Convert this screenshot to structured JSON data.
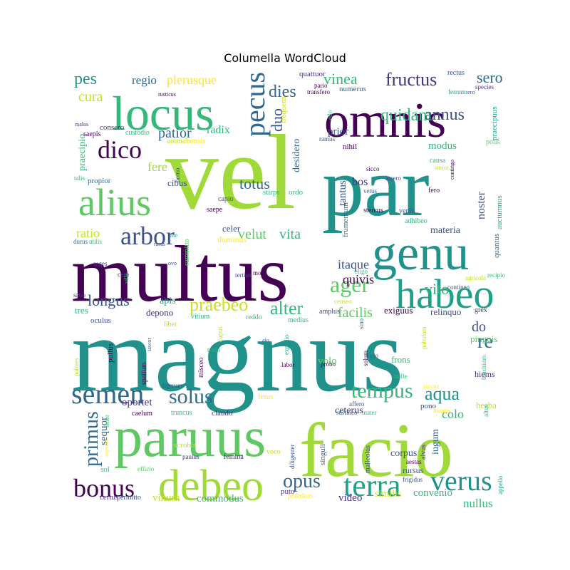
{
  "title": "Columella WordCloud",
  "colors": {
    "dark_purple": "#440154",
    "purple": "#46337e",
    "indigo": "#365c8d",
    "blue": "#277f8e",
    "teal": "#1fa187",
    "green": "#4ac16d",
    "lime": "#a0da39",
    "yellow": "#fde725"
  },
  "words": [
    {
      "text": "magnus",
      "color": "#21918c"
    },
    {
      "text": "vel",
      "color": "#a0da39"
    },
    {
      "text": "par",
      "color": "#21918c"
    },
    {
      "text": "multus",
      "color": "#440154"
    },
    {
      "text": "facio",
      "color": "#a0da39"
    },
    {
      "text": "paruus",
      "color": "#5ec962"
    },
    {
      "text": "omnis",
      "color": "#440154"
    },
    {
      "text": "locus",
      "color": "#35b779"
    },
    {
      "text": "genu",
      "color": "#21918c"
    },
    {
      "text": "debeo",
      "color": "#a0da39"
    },
    {
      "text": "habeo",
      "color": "#1fa187"
    },
    {
      "text": "alius",
      "color": "#5ec962"
    },
    {
      "text": "semen",
      "color": "#31688e"
    },
    {
      "text": "terra",
      "color": "#1fa187"
    },
    {
      "text": "verus",
      "color": "#21918c"
    },
    {
      "text": "dico",
      "color": "#440154"
    },
    {
      "text": "pecus",
      "color": "#31688e"
    },
    {
      "text": "arbor",
      "color": "#3b528b"
    },
    {
      "text": "bonus",
      "color": "#440154"
    },
    {
      "text": "fructus",
      "color": "#46327e"
    },
    {
      "text": "solus",
      "color": "#31688e"
    },
    {
      "text": "ager",
      "color": "#5ec962"
    },
    {
      "text": "tempus",
      "color": "#35b779"
    },
    {
      "text": "aqua",
      "color": "#21918c"
    },
    {
      "text": "primus",
      "color": "#31688e"
    },
    {
      "text": "opus",
      "color": "#31688e"
    },
    {
      "text": "alter",
      "color": "#35b779"
    },
    {
      "text": "praebeo",
      "color": "#c8e020"
    },
    {
      "text": "pes",
      "color": "#21918c"
    },
    {
      "text": "dies",
      "color": "#31688e"
    },
    {
      "text": "quidam",
      "color": "#35b779"
    },
    {
      "text": "annus",
      "color": "#3b528b"
    },
    {
      "text": "re",
      "color": "#31688e"
    },
    {
      "text": "do",
      "color": "#3b528b"
    },
    {
      "text": "longus",
      "color": "#3b528b"
    },
    {
      "text": "vinea",
      "color": "#35b779"
    },
    {
      "text": "sero",
      "color": "#31688e"
    },
    {
      "text": "duo",
      "color": "#3b528b"
    },
    {
      "text": "totus",
      "color": "#31688e"
    },
    {
      "text": "cura",
      "color": "#c8e020"
    },
    {
      "text": "patior",
      "color": "#31688e"
    },
    {
      "text": "velut",
      "color": "#5ec962"
    },
    {
      "text": "vita",
      "color": "#35b779"
    },
    {
      "text": "vito",
      "color": "#35b779"
    },
    {
      "text": "ratio",
      "color": "#c8e020"
    },
    {
      "text": "fere",
      "color": "#a0da39"
    },
    {
      "text": "itaque",
      "color": "#3b528b"
    },
    {
      "text": "quivis",
      "color": "#440154"
    },
    {
      "text": "facilis",
      "color": "#5ec962"
    },
    {
      "text": "plerusque",
      "color": "#fde725"
    },
    {
      "text": "regio",
      "color": "#31688e"
    },
    {
      "text": "radix",
      "color": "#35b779"
    },
    {
      "text": "modus",
      "color": "#35b779"
    },
    {
      "text": "prior",
      "color": "#3b528b"
    },
    {
      "text": "noster",
      "color": "#3b528b"
    },
    {
      "text": "tantus",
      "color": "#3b528b"
    },
    {
      "text": "bos",
      "color": "#46327e"
    },
    {
      "text": "materia",
      "color": "#3b528b"
    },
    {
      "text": "commodus",
      "color": "#35b779"
    },
    {
      "text": "convenio",
      "color": "#35b779"
    },
    {
      "text": "nullus",
      "color": "#35b779"
    },
    {
      "text": "similis",
      "color": "#c8e020"
    },
    {
      "text": "video",
      "color": "#46327e"
    },
    {
      "text": "vinum",
      "color": "#c8e020"
    },
    {
      "text": "oportet",
      "color": "#46327e"
    },
    {
      "text": "sequor",
      "color": "#31688e"
    },
    {
      "text": "colo",
      "color": "#35b779"
    },
    {
      "text": "ceterus",
      "color": "#46327e"
    },
    {
      "text": "corpus",
      "color": "#3b528b"
    },
    {
      "text": "volo",
      "color": "#5ec962"
    },
    {
      "text": "apis",
      "color": "#1fa187"
    },
    {
      "text": "tres",
      "color": "#35b779"
    },
    {
      "text": "depono",
      "color": "#46327e"
    },
    {
      "text": "exiguus",
      "color": "#440154"
    },
    {
      "text": "relinquo",
      "color": "#3b528b"
    },
    {
      "text": "frons",
      "color": "#35b779"
    },
    {
      "text": "pinguis",
      "color": "#5ec962"
    },
    {
      "text": "hiems",
      "color": "#46327e"
    },
    {
      "text": "herba",
      "color": "#c8e020"
    },
    {
      "text": "iugum",
      "color": "#31688e"
    },
    {
      "text": "rursus",
      "color": "#3b528b"
    },
    {
      "text": "desidero",
      "color": "#31688e"
    },
    {
      "text": "cibus",
      "color": "#3b528b"
    },
    {
      "text": "celer",
      "color": "#3b528b"
    },
    {
      "text": "dominus",
      "color": "#fde725"
    },
    {
      "text": "stirps",
      "color": "#35b779"
    },
    {
      "text": "ordo",
      "color": "#35b779"
    },
    {
      "text": "praecipio",
      "color": "#35b779"
    },
    {
      "text": "consero",
      "color": "#46327e"
    },
    {
      "text": "custodio",
      "color": "#35b779"
    },
    {
      "text": "animal",
      "color": "#c8e020"
    },
    {
      "text": "mensis",
      "color": "#fde725"
    },
    {
      "text": "nihil",
      "color": "#440154"
    },
    {
      "text": "ramus",
      "color": "#3b528b"
    },
    {
      "text": "causa",
      "color": "#35b779"
    },
    {
      "text": "umor",
      "color": "#c8e020"
    },
    {
      "text": "propior",
      "color": "#31688e"
    },
    {
      "text": "homo",
      "color": "#3b528b"
    },
    {
      "text": "capio",
      "color": "#3b528b"
    },
    {
      "text": "saepe",
      "color": "#440154"
    },
    {
      "text": "quattuor",
      "color": "#46327e"
    },
    {
      "text": "numerus",
      "color": "#31688e"
    },
    {
      "text": "transfero",
      "color": "#440154"
    },
    {
      "text": "pario",
      "color": "#440154"
    },
    {
      "text": "rectus",
      "color": "#3b528b"
    },
    {
      "text": "species",
      "color": "#46327e"
    },
    {
      "text": "ferrum",
      "color": "#1fa187"
    },
    {
      "text": "praecipuus",
      "color": "#1fa187"
    },
    {
      "text": "potis",
      "color": "#5ec962"
    },
    {
      "text": "contingo",
      "color": "#440154"
    },
    {
      "text": "sicco",
      "color": "#440154"
    },
    {
      "text": "insero",
      "color": "#3b528b"
    },
    {
      "text": "vetus",
      "color": "#31688e"
    },
    {
      "text": "fero",
      "color": "#440154"
    },
    {
      "text": "stercus",
      "color": "#440154"
    },
    {
      "text": "venio",
      "color": "#3b528b"
    },
    {
      "text": "adhibeo",
      "color": "#35b779"
    },
    {
      "text": "auctumnus",
      "color": "#1fa187"
    },
    {
      "text": "frumentum",
      "color": "#31688e"
    },
    {
      "text": "quantus",
      "color": "#31688e"
    },
    {
      "text": "eligo",
      "color": "#35b779"
    },
    {
      "text": "agricola",
      "color": "#c8e020"
    },
    {
      "text": "contineo",
      "color": "#3b528b"
    },
    {
      "text": "recipio",
      "color": "#35b779"
    },
    {
      "text": "censeo",
      "color": "#c8e020"
    },
    {
      "text": "amplus",
      "color": "#3b528b"
    },
    {
      "text": "medius",
      "color": "#35b779"
    },
    {
      "text": "grex",
      "color": "#46327e"
    },
    {
      "text": "sino",
      "color": "#31688e"
    },
    {
      "text": "tertius",
      "color": "#3b528b"
    },
    {
      "text": "mos",
      "color": "#440154"
    },
    {
      "text": "reddo",
      "color": "#35b779"
    },
    {
      "text": "vitium",
      "color": "#35b779"
    },
    {
      "text": "oculus",
      "color": "#3b528b"
    },
    {
      "text": "satio",
      "color": "#46327e"
    },
    {
      "text": "curo",
      "color": "#46327e"
    },
    {
      "text": "villa",
      "color": "#35b779"
    },
    {
      "text": "ovo",
      "color": "#3b528b"
    },
    {
      "text": "summitto",
      "color": "#5ec962"
    },
    {
      "text": "seges",
      "color": "#46327e"
    },
    {
      "text": "durus",
      "color": "#31688e"
    },
    {
      "text": "utilis",
      "color": "#35b779"
    },
    {
      "text": "rarus",
      "color": "#3b528b"
    },
    {
      "text": "iste",
      "color": "#1fa187"
    },
    {
      "text": "talis",
      "color": "#35b779"
    },
    {
      "text": "saepis",
      "color": "#440154"
    },
    {
      "text": "malus",
      "color": "#46327e"
    },
    {
      "text": "rusticus",
      "color": "#440154"
    },
    {
      "text": "tero",
      "color": "#3b528b"
    },
    {
      "text": "edo",
      "color": "#35b779"
    },
    {
      "text": "frequens",
      "color": "#c8e020"
    },
    {
      "text": "liber",
      "color": "#c8e020"
    },
    {
      "text": "caput",
      "color": "#c8e020"
    },
    {
      "text": "misceo",
      "color": "#440154"
    },
    {
      "text": "trado",
      "color": "#35b779"
    },
    {
      "text": "iascor",
      "color": "#31688e"
    },
    {
      "text": "aio",
      "color": "#3b528b"
    },
    {
      "text": "expedio",
      "color": "#1fa187"
    },
    {
      "text": "labor",
      "color": "#440154"
    },
    {
      "text": "probo",
      "color": "#440154"
    },
    {
      "text": "solum",
      "color": "#440154"
    },
    {
      "text": "ago",
      "color": "#31688e"
    },
    {
      "text": "mille",
      "color": "#35b779"
    },
    {
      "text": "pabulum",
      "color": "#c8e020"
    },
    {
      "text": "brachium",
      "color": "#35b779"
    },
    {
      "text": "palmes",
      "color": "#c8e020"
    },
    {
      "text": "pullus",
      "color": "#440154"
    },
    {
      "text": "spatium",
      "color": "#440154"
    },
    {
      "text": "iugerum",
      "color": "#3b528b"
    },
    {
      "text": "fetus",
      "color": "#fde725"
    },
    {
      "text": "affero",
      "color": "#3b528b"
    },
    {
      "text": "sustineo",
      "color": "#31688e"
    },
    {
      "text": "siccus",
      "color": "#fde725"
    },
    {
      "text": "pono",
      "color": "#3b528b"
    },
    {
      "text": "manus",
      "color": "#fde725"
    },
    {
      "text": "mater",
      "color": "#35b779"
    },
    {
      "text": "tener",
      "color": "#35b779"
    },
    {
      "text": "caelum",
      "color": "#440154"
    },
    {
      "text": "truncus",
      "color": "#35b779"
    },
    {
      "text": "claudo",
      "color": "#46327e"
    },
    {
      "text": "altus",
      "color": "#35b779"
    },
    {
      "text": "superus",
      "color": "#fde725"
    },
    {
      "text": "scrobis",
      "color": "#c8e020"
    },
    {
      "text": "paulus",
      "color": "#46327e"
    },
    {
      "text": "femina",
      "color": "#46327e"
    },
    {
      "text": "voco",
      "color": "#c8e020"
    },
    {
      "text": "diligenter",
      "color": "#3b528b"
    },
    {
      "text": "singuli",
      "color": "#3b528b"
    },
    {
      "text": "malleolus",
      "color": "#3b528b"
    },
    {
      "text": "alvus",
      "color": "#46327e"
    },
    {
      "text": "aestas",
      "color": "#440154"
    },
    {
      "text": "frigidus",
      "color": "#3b528b"
    },
    {
      "text": "appello",
      "color": "#1fa187"
    },
    {
      "text": "sol",
      "color": "#35b779"
    },
    {
      "text": "efficio",
      "color": "#5ec962"
    },
    {
      "text": "certus",
      "color": "#46327e"
    },
    {
      "text": "permitto",
      "color": "#3b528b"
    },
    {
      "text": "puto",
      "color": "#46327e"
    },
    {
      "text": "praedico",
      "color": "#fde725"
    }
  ]
}
